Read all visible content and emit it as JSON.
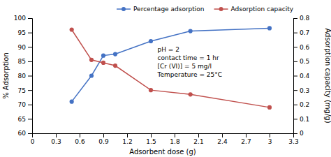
{
  "chart_data": {
    "type": "line",
    "xlabel": "Adsorbent dose (g)",
    "ylabel": "% Adsorption",
    "y2label": "Adsorption capacity (mg/g)",
    "x": [
      0.5,
      0.75,
      0.9,
      1.05,
      1.5,
      2.0,
      3.0
    ],
    "series": [
      {
        "name": "Percentage adsorption",
        "color": "#4472C4",
        "marker": "circle",
        "values": [
          71,
          80,
          87,
          87.5,
          92,
          95.5,
          96.5
        ]
      },
      {
        "name": "Adsorption capacity",
        "color": "#C0504D",
        "marker": "circle",
        "axis": "y2",
        "values": [
          0.72,
          0.51,
          0.49,
          0.47,
          0.3,
          0.27,
          0.18
        ]
      }
    ],
    "xlim": [
      0,
      3.3
    ],
    "xticks": [
      0,
      0.3,
      0.6,
      0.9,
      1.2,
      1.5,
      1.8,
      2.1,
      2.4,
      2.7,
      3.0,
      3.3
    ],
    "ylim": [
      60,
      100
    ],
    "yticks": [
      60,
      65,
      70,
      75,
      80,
      85,
      90,
      95,
      100
    ],
    "y2lim": [
      0,
      0.8
    ],
    "y2ticks": [
      0,
      0.1,
      0.2,
      0.3,
      0.4,
      0.5,
      0.6,
      0.7,
      0.8
    ],
    "legend": "upper right",
    "annotations": [
      "pH = 2",
      "contact time = 1 hr",
      "[Cr (VI)] = 5 mg/l",
      "Temperature = 25°C"
    ]
  }
}
